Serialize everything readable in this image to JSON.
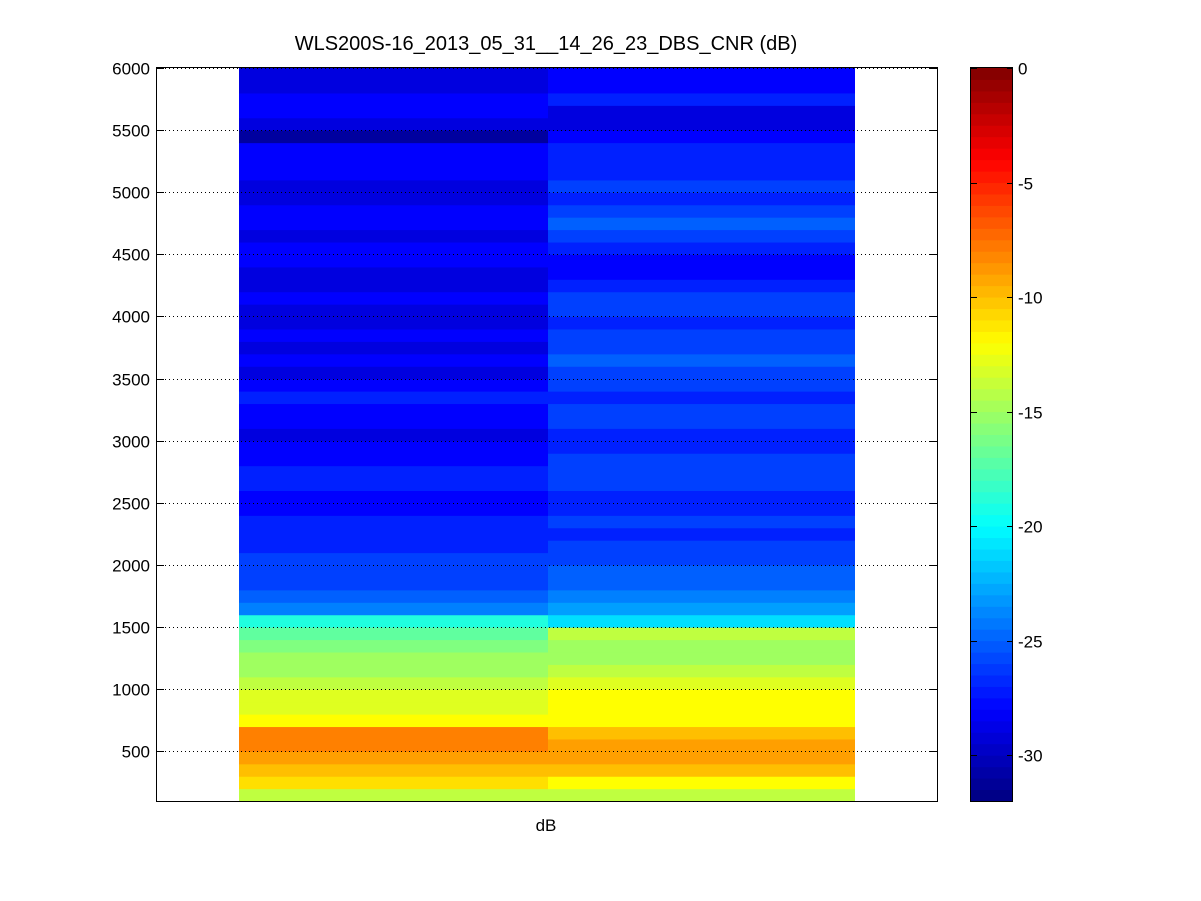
{
  "chart_data": {
    "type": "heatmap",
    "title": "WLS200S-16_2013_05_31__14_26_23_DBS_CNR (dB)",
    "xlabel": "dB",
    "ylabel": "",
    "ylim": [
      100,
      6000
    ],
    "yticks": [
      500,
      1000,
      1500,
      2000,
      2500,
      3000,
      3500,
      4000,
      4500,
      5000,
      5500,
      6000
    ],
    "ytick_labels": [
      "500",
      "1000",
      "1500",
      "2000",
      "2500",
      "3000",
      "3500",
      "4000",
      "4500",
      "5000",
      "5500",
      "6000"
    ],
    "grid": "y-dotted",
    "colormap": "jet",
    "clim": [
      -32,
      0
    ],
    "colorbar_ticks": [
      0,
      -5,
      -10,
      -15,
      -20,
      -25,
      -30
    ],
    "colorbar_tick_labels": [
      "0",
      "-5",
      "-10",
      "-15",
      "-20",
      "-25",
      "-30"
    ],
    "range_gate_start": 100,
    "range_gate_step": 100,
    "columns": [
      {
        "values": [
          -14,
          -11,
          -10,
          -9,
          -8,
          -8,
          -12,
          -13,
          -13,
          -14,
          -15,
          -15,
          -16,
          -17,
          -19,
          -24,
          -25,
          -26,
          -26,
          -26,
          -27,
          -27,
          -27,
          -28,
          -28,
          -27,
          -27,
          -28,
          -28,
          -29,
          -28,
          -28,
          -27,
          -28,
          -29,
          -28,
          -29,
          -28,
          -29,
          -29,
          -28,
          -29,
          -29,
          -28,
          -28,
          -29,
          -28,
          -28,
          -29,
          -29,
          -28,
          -28,
          -28,
          -31,
          -29,
          -28,
          -28,
          -29,
          -29
        ]
      },
      {
        "values": [
          -14,
          -12,
          -10,
          -9,
          -9,
          -10,
          -12,
          -12,
          -12,
          -13,
          -14,
          -15,
          -15,
          -14,
          -21,
          -23,
          -24,
          -25,
          -25,
          -26,
          -26,
          -27,
          -26,
          -27,
          -27,
          -26,
          -26,
          -26,
          -27,
          -27,
          -26,
          -26,
          -27,
          -26,
          -26,
          -25,
          -26,
          -26,
          -27,
          -26,
          -26,
          -27,
          -28,
          -28,
          -27,
          -26,
          -25,
          -26,
          -27,
          -26,
          -27,
          -27,
          -27,
          -28,
          -29,
          -29,
          -27,
          -28,
          -28,
          -25
        ]
      }
    ]
  }
}
